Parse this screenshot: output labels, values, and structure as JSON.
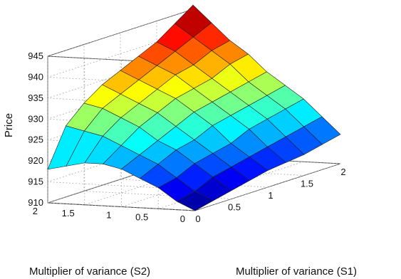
{
  "chart_data": {
    "type": "surface",
    "title": "",
    "zlabel": "Price",
    "xlabel": "Multiplier of variance (S1)",
    "ylabel": "Multiplier of variance (S2)",
    "x": [
      0,
      0.25,
      0.5,
      0.75,
      1,
      1.25,
      1.5,
      1.75,
      2
    ],
    "y": [
      0,
      0.25,
      0.5,
      0.75,
      1,
      1.25,
      1.5,
      1.75,
      2
    ],
    "z": [
      [
        910,
        911,
        912,
        913,
        914,
        914.5,
        915,
        916,
        917
      ],
      [
        912,
        913,
        915,
        916,
        917,
        918,
        919,
        920,
        921
      ],
      [
        915,
        916,
        918,
        919,
        920,
        922,
        923,
        924,
        925
      ],
      [
        917,
        919,
        921,
        922,
        924,
        925,
        926,
        927,
        928
      ],
      [
        919,
        921,
        923,
        925,
        927,
        928,
        929,
        930,
        931
      ],
      [
        920,
        923,
        926,
        928,
        930,
        931,
        932,
        934,
        935
      ],
      [
        920,
        925,
        928,
        930,
        932,
        934,
        935,
        937,
        938
      ],
      [
        919,
        926,
        930,
        932,
        934,
        936,
        938,
        940,
        942
      ],
      [
        918,
        927,
        931,
        934,
        936,
        938,
        940,
        943,
        946
      ]
    ],
    "x_ticks": [
      "0",
      "0.5",
      "1",
      "1.5",
      "2"
    ],
    "y_ticks": [
      "0",
      "0.5",
      "1",
      "1.5",
      "2"
    ],
    "z_ticks": [
      "910",
      "915",
      "920",
      "925",
      "930",
      "935",
      "940",
      "945"
    ],
    "xlim": [
      0,
      2
    ],
    "ylim": [
      0,
      2
    ],
    "zlim": [
      910,
      945
    ],
    "colormap": "jet",
    "grid": true
  }
}
